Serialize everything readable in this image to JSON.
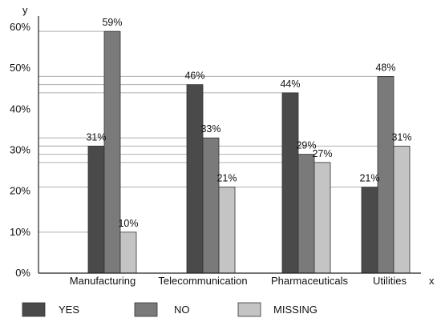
{
  "chart_data": {
    "type": "bar",
    "title": "",
    "xlabel": "x",
    "ylabel": "y",
    "ylim": [
      0,
      60
    ],
    "yticks": [
      0,
      10,
      20,
      30,
      40,
      50,
      60
    ],
    "ytick_labels": [
      "0%",
      "10%",
      "20%",
      "30%",
      "40%",
      "50%",
      "60%"
    ],
    "categories": [
      "Manufacturing",
      "Telecommunication",
      "Pharmaceuticals",
      "Utilities"
    ],
    "series": [
      {
        "name": "YES",
        "values": [
          31,
          46,
          44,
          21
        ],
        "labels": [
          "31%",
          "46%",
          "44%",
          "21%"
        ],
        "color": "#4a4a4a"
      },
      {
        "name": "NO",
        "values": [
          59,
          33,
          29,
          48
        ],
        "labels": [
          "59%",
          "33%",
          "29%",
          "48%"
        ],
        "color": "#7a7a7a"
      },
      {
        "name": "MISSING",
        "values": [
          10,
          21,
          27,
          31
        ],
        "labels": [
          "10%",
          "21%",
          "27%",
          "31%"
        ],
        "color": "#c4c4c4"
      }
    ],
    "grid": false,
    "legend_position": "bottom-left"
  }
}
